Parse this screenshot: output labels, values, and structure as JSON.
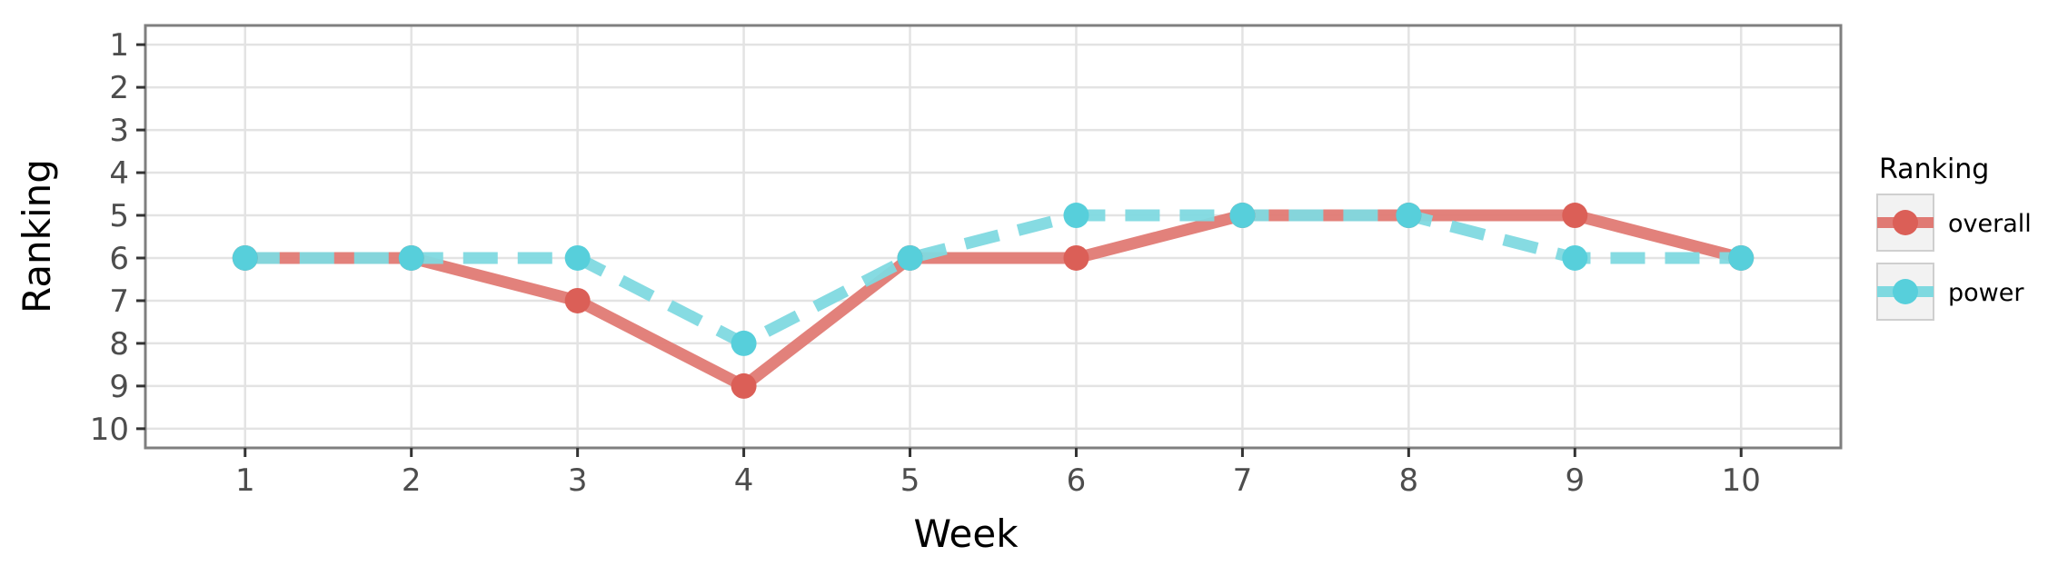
{
  "chart_data": {
    "type": "line",
    "xlabel": "Week",
    "ylabel": "Ranking",
    "x": [
      1,
      2,
      3,
      4,
      5,
      6,
      7,
      8,
      9,
      10
    ],
    "xlim": [
      0.4,
      10.6
    ],
    "ylim": [
      10.45,
      0.55
    ],
    "y_reversed": true,
    "x_ticks": [
      1,
      2,
      3,
      4,
      5,
      6,
      7,
      8,
      9,
      10
    ],
    "y_ticks": [
      1,
      2,
      3,
      4,
      5,
      6,
      7,
      8,
      9,
      10
    ],
    "grid": true,
    "legend": {
      "title": "Ranking",
      "position": "right"
    },
    "series": [
      {
        "name": "overall",
        "values": [
          6,
          6,
          7,
          9,
          6,
          6,
          5,
          5,
          5,
          6
        ],
        "color": "#E07A74",
        "marker_color": "#DB5F57",
        "line_style": "solid"
      },
      {
        "name": "power",
        "values": [
          6,
          6,
          6,
          8,
          6,
          5,
          5,
          5,
          6,
          6
        ],
        "color": "#7FD9E0",
        "marker_color": "#57CFDB",
        "line_style": "dashed"
      }
    ]
  }
}
